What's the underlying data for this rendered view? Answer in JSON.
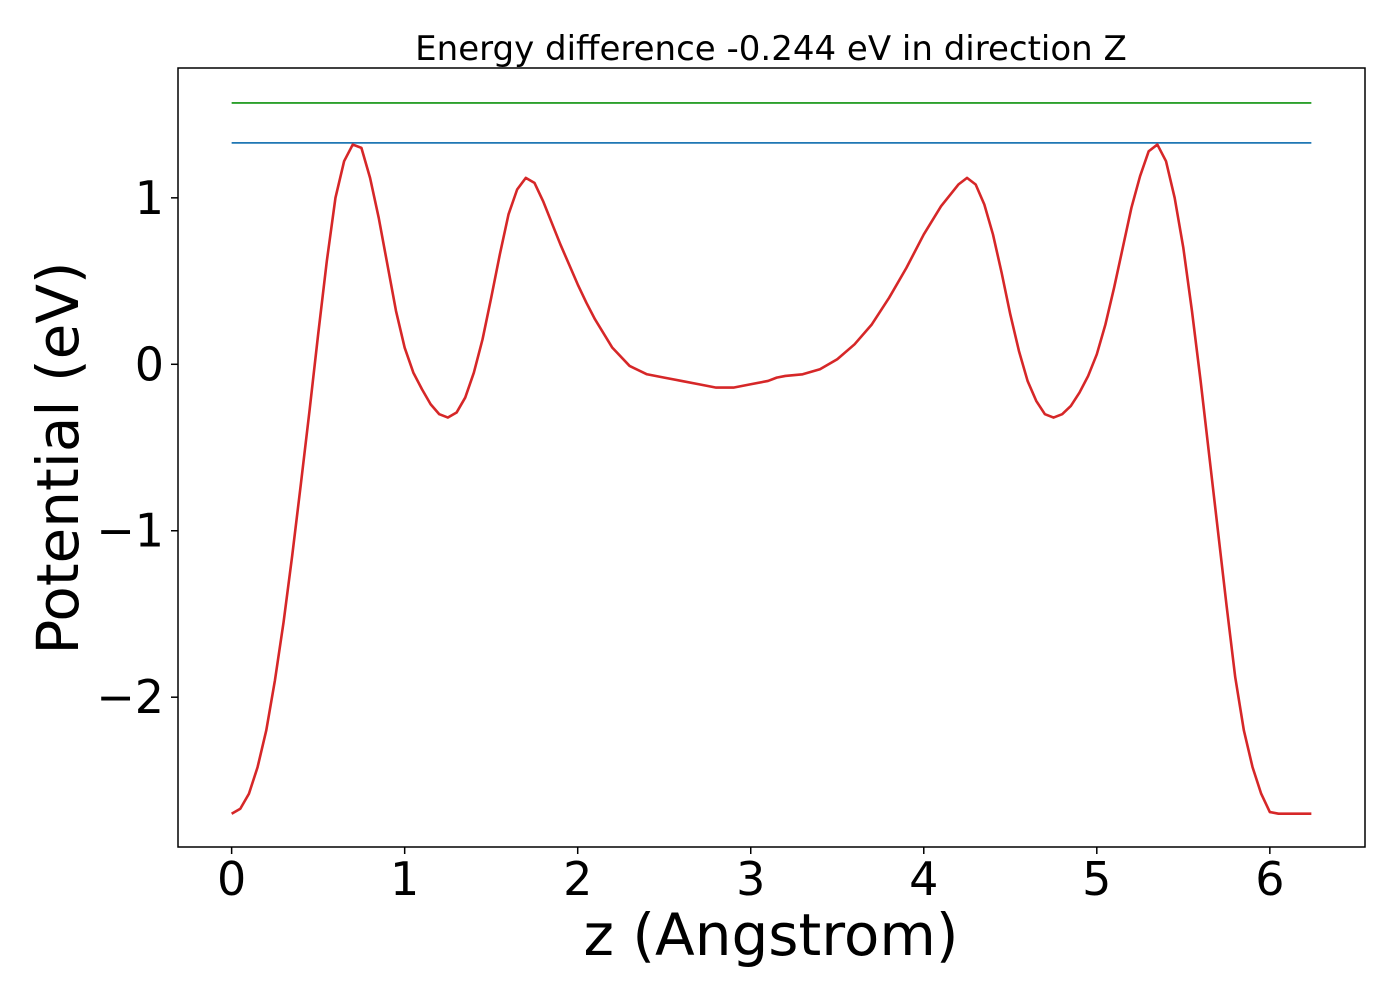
{
  "chart_data": {
    "type": "line",
    "title": "Energy difference -0.244 eV in direction Z",
    "xlabel": "z (Angstrom)",
    "ylabel": "Potential (eV)",
    "xlim": [
      -0.31,
      6.55
    ],
    "ylim": [
      -2.9,
      1.78
    ],
    "grid": false,
    "x_ticks": [
      {
        "value": 0,
        "label": "0"
      },
      {
        "value": 1,
        "label": "1"
      },
      {
        "value": 2,
        "label": "2"
      },
      {
        "value": 3,
        "label": "3"
      },
      {
        "value": 4,
        "label": "4"
      },
      {
        "value": 5,
        "label": "5"
      },
      {
        "value": 6,
        "label": "6"
      }
    ],
    "y_ticks": [
      {
        "value": -2,
        "label": "−2"
      },
      {
        "value": -1,
        "label": "−1"
      },
      {
        "value": 0,
        "label": "0"
      },
      {
        "value": 1,
        "label": "1"
      }
    ],
    "series": [
      {
        "color": "#2ca02c",
        "x": [
          0.0,
          6.24
        ],
        "y": [
          1.57,
          1.57
        ]
      },
      {
        "color": "#1f77b4",
        "x": [
          0.0,
          6.24
        ],
        "y": [
          1.33,
          1.33
        ]
      },
      {
        "color": "#d62728",
        "x": [
          0.0,
          0.05,
          0.1,
          0.15,
          0.2,
          0.25,
          0.3,
          0.35,
          0.4,
          0.45,
          0.5,
          0.55,
          0.6,
          0.65,
          0.7,
          0.75,
          0.8,
          0.85,
          0.9,
          0.95,
          1.0,
          1.05,
          1.1,
          1.15,
          1.2,
          1.25,
          1.3,
          1.35,
          1.4,
          1.45,
          1.5,
          1.55,
          1.6,
          1.65,
          1.7,
          1.75,
          1.8,
          1.85,
          1.9,
          1.95,
          2.0,
          2.05,
          2.1,
          2.2,
          2.3,
          2.4,
          2.5,
          2.6,
          2.7,
          2.8,
          2.9,
          3.0,
          3.1,
          3.15,
          3.2,
          3.3,
          3.4,
          3.5,
          3.6,
          3.7,
          3.8,
          3.9,
          4.0,
          4.1,
          4.2,
          4.25,
          4.3,
          4.35,
          4.4,
          4.45,
          4.5,
          4.55,
          4.6,
          4.65,
          4.7,
          4.75,
          4.8,
          4.85,
          4.9,
          4.95,
          5.0,
          5.05,
          5.1,
          5.15,
          5.2,
          5.25,
          5.3,
          5.35,
          5.4,
          5.45,
          5.5,
          5.55,
          5.6,
          5.65,
          5.7,
          5.75,
          5.8,
          5.85,
          5.9,
          5.95,
          6.0,
          6.05,
          6.1,
          6.15,
          6.2,
          6.24
        ],
        "y": [
          -2.7,
          -2.67,
          -2.58,
          -2.42,
          -2.2,
          -1.9,
          -1.55,
          -1.15,
          -0.72,
          -0.28,
          0.18,
          0.62,
          1.0,
          1.22,
          1.32,
          1.3,
          1.12,
          0.88,
          0.6,
          0.32,
          0.1,
          -0.05,
          -0.15,
          -0.24,
          -0.3,
          -0.32,
          -0.29,
          -0.2,
          -0.05,
          0.15,
          0.4,
          0.66,
          0.9,
          1.05,
          1.12,
          1.09,
          0.98,
          0.85,
          0.72,
          0.6,
          0.48,
          0.37,
          0.27,
          0.1,
          -0.01,
          -0.06,
          -0.08,
          -0.1,
          -0.12,
          -0.14,
          -0.14,
          -0.12,
          -0.1,
          -0.08,
          -0.07,
          -0.06,
          -0.03,
          0.03,
          0.12,
          0.24,
          0.4,
          0.58,
          0.78,
          0.95,
          1.08,
          1.12,
          1.08,
          0.96,
          0.78,
          0.55,
          0.3,
          0.08,
          -0.1,
          -0.22,
          -0.3,
          -0.32,
          -0.3,
          -0.25,
          -0.17,
          -0.07,
          0.06,
          0.24,
          0.46,
          0.7,
          0.94,
          1.13,
          1.28,
          1.32,
          1.22,
          1.0,
          0.7,
          0.32,
          -0.1,
          -0.55,
          -1.0,
          -1.45,
          -1.88,
          -2.2,
          -2.42,
          -2.58,
          -2.69,
          -2.7,
          -2.7,
          -2.7,
          -2.7,
          -2.7
        ]
      }
    ]
  }
}
